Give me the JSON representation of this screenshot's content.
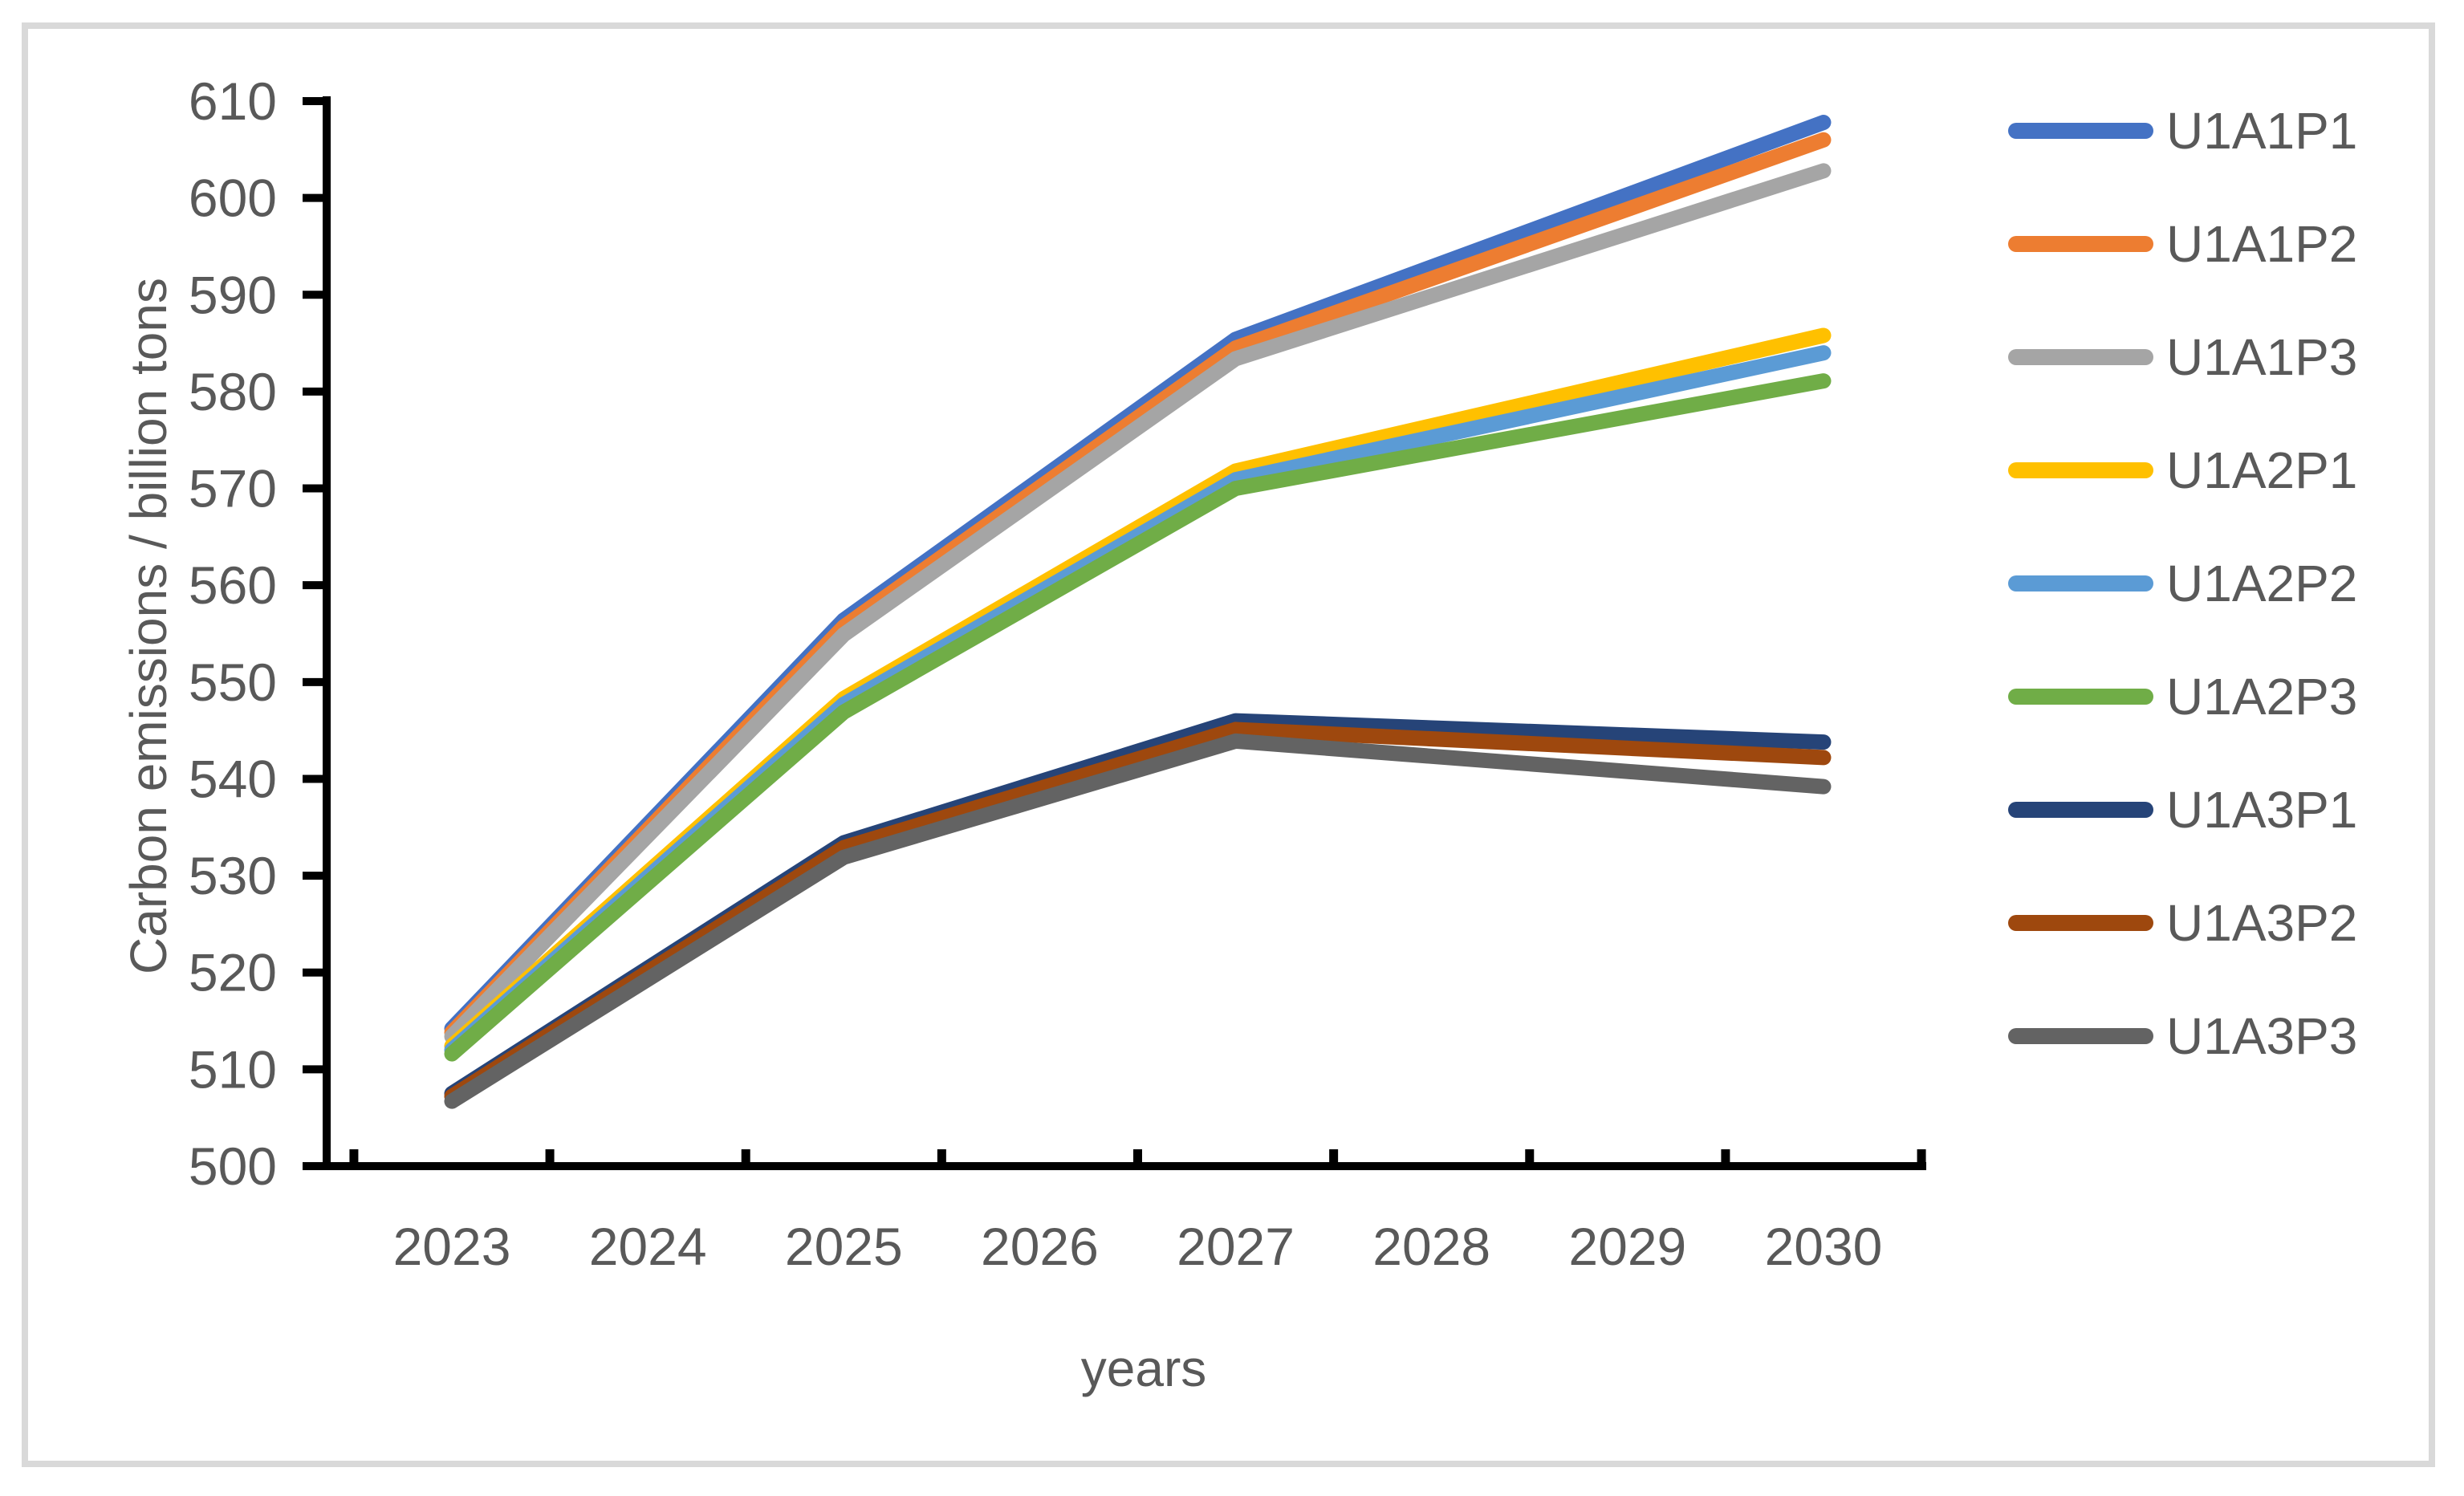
{
  "chart_data": {
    "type": "line",
    "title": "",
    "xlabel": "years",
    "ylabel": "Carbon emissions / billion tons",
    "categories": [
      "2023",
      "2024",
      "2025",
      "2026",
      "2027",
      "2028",
      "2029",
      "2030"
    ],
    "ylim": [
      500,
      610
    ],
    "yticks": [
      500,
      510,
      520,
      530,
      540,
      550,
      560,
      570,
      580,
      590,
      600,
      610
    ],
    "grid": false,
    "legend_position": "right",
    "series": [
      {
        "name": "U1A1P1",
        "color": "#4472C4",
        "x": [
          2023,
          2025,
          2027,
          2030
        ],
        "values": [
          514.2,
          556.4,
          585.4,
          607.8
        ]
      },
      {
        "name": "U1A1P2",
        "color": "#ED7D31",
        "x": [
          2023,
          2025,
          2027,
          2030
        ],
        "values": [
          513.8,
          555.7,
          584.5,
          606.0
        ]
      },
      {
        "name": "U1A1P3",
        "color": "#A5A5A5",
        "x": [
          2023,
          2025,
          2027,
          2030
        ],
        "values": [
          513.4,
          554.9,
          583.4,
          602.8
        ]
      },
      {
        "name": "U1A2P1",
        "color": "#FFC000",
        "x": [
          2023,
          2025,
          2027,
          2030
        ],
        "values": [
          512.4,
          548.3,
          571.8,
          585.8
        ]
      },
      {
        "name": "U1A2P2",
        "color": "#5B9BD5",
        "x": [
          2023,
          2025,
          2027,
          2030
        ],
        "values": [
          512.0,
          547.7,
          570.9,
          584.0
        ]
      },
      {
        "name": "U1A2P3",
        "color": "#70AD47",
        "x": [
          2023,
          2025,
          2027,
          2030
        ],
        "values": [
          511.6,
          546.9,
          570.0,
          581.1
        ]
      },
      {
        "name": "U1A3P1",
        "color": "#264478",
        "x": [
          2023,
          2025,
          2027,
          2030
        ],
        "values": [
          507.5,
          533.4,
          546.0,
          543.8
        ]
      },
      {
        "name": "U1A3P2",
        "color": "#9E480E",
        "x": [
          2023,
          2025,
          2027,
          2030
        ],
        "values": [
          507.2,
          532.9,
          545.1,
          542.2
        ]
      },
      {
        "name": "U1A3P3",
        "color": "#636363",
        "x": [
          2023,
          2025,
          2027,
          2030
        ],
        "values": [
          506.7,
          531.9,
          543.9,
          539.2
        ]
      }
    ]
  },
  "style_colors": {
    "axis_line": "#000000",
    "text": "#595959",
    "frame_border": "#D9D9D9",
    "background": "#FFFFFF"
  }
}
